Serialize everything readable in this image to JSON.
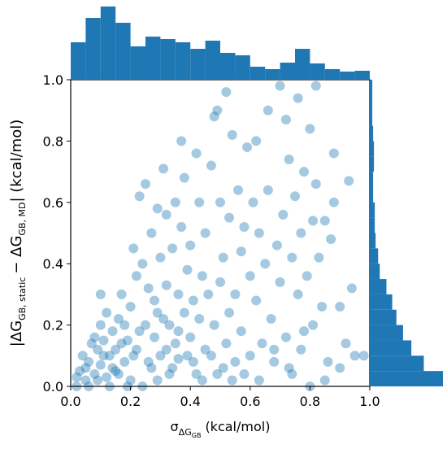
{
  "chart_data": [
    {
      "type": "scatter",
      "color": "#1f77b4",
      "opacity": 0.4,
      "x_label": [
        "σ",
        "ΔG",
        "GB",
        "(kcal/mol)"
      ],
      "y_label": [
        "|ΔG",
        "GB, static",
        "− ΔG",
        "GB, MD",
        "| (kcal/mol)"
      ],
      "xlim": [
        0,
        1
      ],
      "ylim": [
        0,
        1
      ],
      "xticks": [
        {
          "value": 0,
          "label": "0.0"
        },
        {
          "value": 0.2,
          "label": "0.2"
        },
        {
          "value": 0.4,
          "label": "0.4"
        },
        {
          "value": 0.6,
          "label": "0.6"
        },
        {
          "value": 0.8,
          "label": "0.8"
        },
        {
          "value": 1,
          "label": "1.0"
        }
      ],
      "yticks": [
        {
          "value": 0,
          "label": "0.0"
        },
        {
          "value": 0.2,
          "label": "0.2"
        },
        {
          "value": 0.4,
          "label": "0.4"
        },
        {
          "value": 0.6,
          "label": "0.6"
        },
        {
          "value": 0.8,
          "label": "0.8"
        },
        {
          "value": 1,
          "label": "1.0"
        }
      ],
      "x": [
        0.02,
        0.03,
        0.05,
        0.06,
        0.08,
        0.09,
        0.1,
        0.11,
        0.12,
        0.13,
        0.14,
        0.15,
        0.04,
        0.07,
        0.1,
        0.12,
        0.1,
        0.15,
        0.16,
        0.18,
        0.17,
        0.19,
        0.2,
        0.21,
        0.22,
        0.2,
        0.22,
        0.23,
        0.24,
        0.25,
        0.25,
        0.26,
        0.27,
        0.27,
        0.28,
        0.28,
        0.29,
        0.3,
        0.3,
        0.31,
        0.31,
        0.32,
        0.32,
        0.33,
        0.33,
        0.34,
        0.35,
        0.35,
        0.36,
        0.36,
        0.37,
        0.37,
        0.38,
        0.38,
        0.39,
        0.4,
        0.4,
        0.41,
        0.42,
        0.42,
        0.43,
        0.43,
        0.44,
        0.45,
        0.45,
        0.46,
        0.47,
        0.48,
        0.48,
        0.49,
        0.49,
        0.5,
        0.5,
        0.51,
        0.52,
        0.52,
        0.53,
        0.53,
        0.54,
        0.55,
        0.55,
        0.56,
        0.57,
        0.57,
        0.58,
        0.59,
        0.6,
        0.6,
        0.61,
        0.62,
        0.62,
        0.63,
        0.64,
        0.65,
        0.66,
        0.66,
        0.67,
        0.68,
        0.69,
        0.7,
        0.7,
        0.71,
        0.72,
        0.72,
        0.73,
        0.74,
        0.74,
        0.75,
        0.76,
        0.76,
        0.77,
        0.77,
        0.78,
        0.79,
        0.8,
        0.8,
        0.81,
        0.81,
        0.82,
        0.82,
        0.83,
        0.84,
        0.85,
        0.86,
        0.87,
        0.88,
        0.88,
        0.9,
        0.92,
        0.93,
        0.94,
        0.95,
        0.98,
        0.02,
        0.06,
        0.09,
        0.13,
        0.16,
        0.19,
        0.24,
        0.29,
        0.05,
        0.08,
        0.11,
        0.14,
        0.17,
        0.18,
        0.21,
        0.23,
        0.26,
        0.29,
        0.32,
        0.34,
        0.36,
        0.39,
        0.41,
        0.44,
        0.47,
        0.51,
        0.54,
        0.58,
        0.63,
        0.68,
        0.73,
        0.78,
        0.85,
        0.9
      ],
      "values": [
        0.03,
        0.05,
        0.02,
        0.08,
        0.04,
        0.12,
        0.07,
        0.15,
        0.03,
        0.1,
        0.18,
        0.05,
        0.1,
        0.14,
        0.2,
        0.24,
        0.3,
        0.12,
        0.22,
        0.08,
        0.3,
        0.15,
        0.02,
        0.45,
        0.36,
        0.26,
        0.12,
        0.62,
        0.4,
        0.66,
        0.2,
        0.32,
        0.06,
        0.5,
        0.16,
        0.28,
        0.58,
        0.1,
        0.42,
        0.22,
        0.71,
        0.56,
        0.33,
        0.04,
        0.2,
        0.45,
        0.14,
        0.6,
        0.3,
        0.09,
        0.52,
        0.8,
        0.24,
        0.68,
        0.38,
        0.46,
        0.16,
        0.28,
        0.76,
        0.04,
        0.6,
        0.22,
        0.36,
        0.5,
        0.12,
        0.3,
        0.72,
        0.88,
        0.2,
        0.9,
        0.04,
        0.6,
        0.34,
        0.42,
        0.96,
        0.14,
        0.24,
        0.55,
        0.82,
        0.3,
        0.08,
        0.64,
        0.44,
        0.18,
        0.52,
        0.78,
        0.36,
        0.1,
        0.6,
        0.8,
        0.28,
        0.5,
        0.14,
        0.4,
        0.64,
        0.9,
        0.22,
        0.08,
        0.46,
        0.98,
        0.34,
        0.56,
        0.16,
        0.87,
        0.74,
        0.42,
        0.04,
        0.62,
        0.3,
        0.94,
        0.5,
        0.12,
        0.7,
        0.36,
        0.84,
        0.0,
        0.54,
        0.2,
        0.98,
        0.66,
        0.42,
        0.26,
        0.54,
        0.08,
        0.48,
        0.76,
        0.6,
        0.26,
        0.14,
        0.67,
        0.32,
        0.1,
        0.1,
        0.0,
        0.0,
        0.02,
        0.0,
        0.04,
        0.0,
        0.0,
        0.02,
        0.06,
        0.16,
        0.1,
        0.06,
        0.14,
        0.2,
        0.1,
        0.18,
        0.08,
        0.24,
        0.12,
        0.06,
        0.18,
        0.1,
        0.08,
        0.02,
        0.1,
        0.06,
        0.02,
        0.04,
        0.02,
        0.12,
        0.06,
        0.18,
        0.02,
        0.06
      ]
    },
    {
      "type": "histogram",
      "orientation": "vertical",
      "color": "#1f77b4",
      "bins": [
        0,
        0.05,
        0.1,
        0.15,
        0.2,
        0.25,
        0.3,
        0.35,
        0.4,
        0.45,
        0.5,
        0.55,
        0.6,
        0.65,
        0.7,
        0.75,
        0.8,
        0.85,
        0.9,
        0.95,
        1
      ],
      "counts": [
        46,
        76,
        90,
        70,
        41,
        53,
        50,
        46,
        38,
        48,
        33,
        30,
        16,
        13,
        21,
        38,
        20,
        13,
        10,
        11
      ]
    },
    {
      "type": "histogram",
      "orientation": "horizontal",
      "color": "#1f77b4",
      "bins": [
        0,
        0.05,
        0.1,
        0.15,
        0.2,
        0.25,
        0.3,
        0.35,
        0.4,
        0.45,
        0.5,
        0.55,
        0.6,
        0.65,
        0.7,
        0.75,
        0.8,
        0.85,
        0.9,
        0.95,
        1
      ],
      "counts": [
        88,
        65,
        50,
        40,
        32,
        27,
        20,
        12,
        10,
        7,
        6,
        6,
        4,
        4,
        5,
        5,
        4,
        3,
        3,
        3
      ]
    }
  ]
}
